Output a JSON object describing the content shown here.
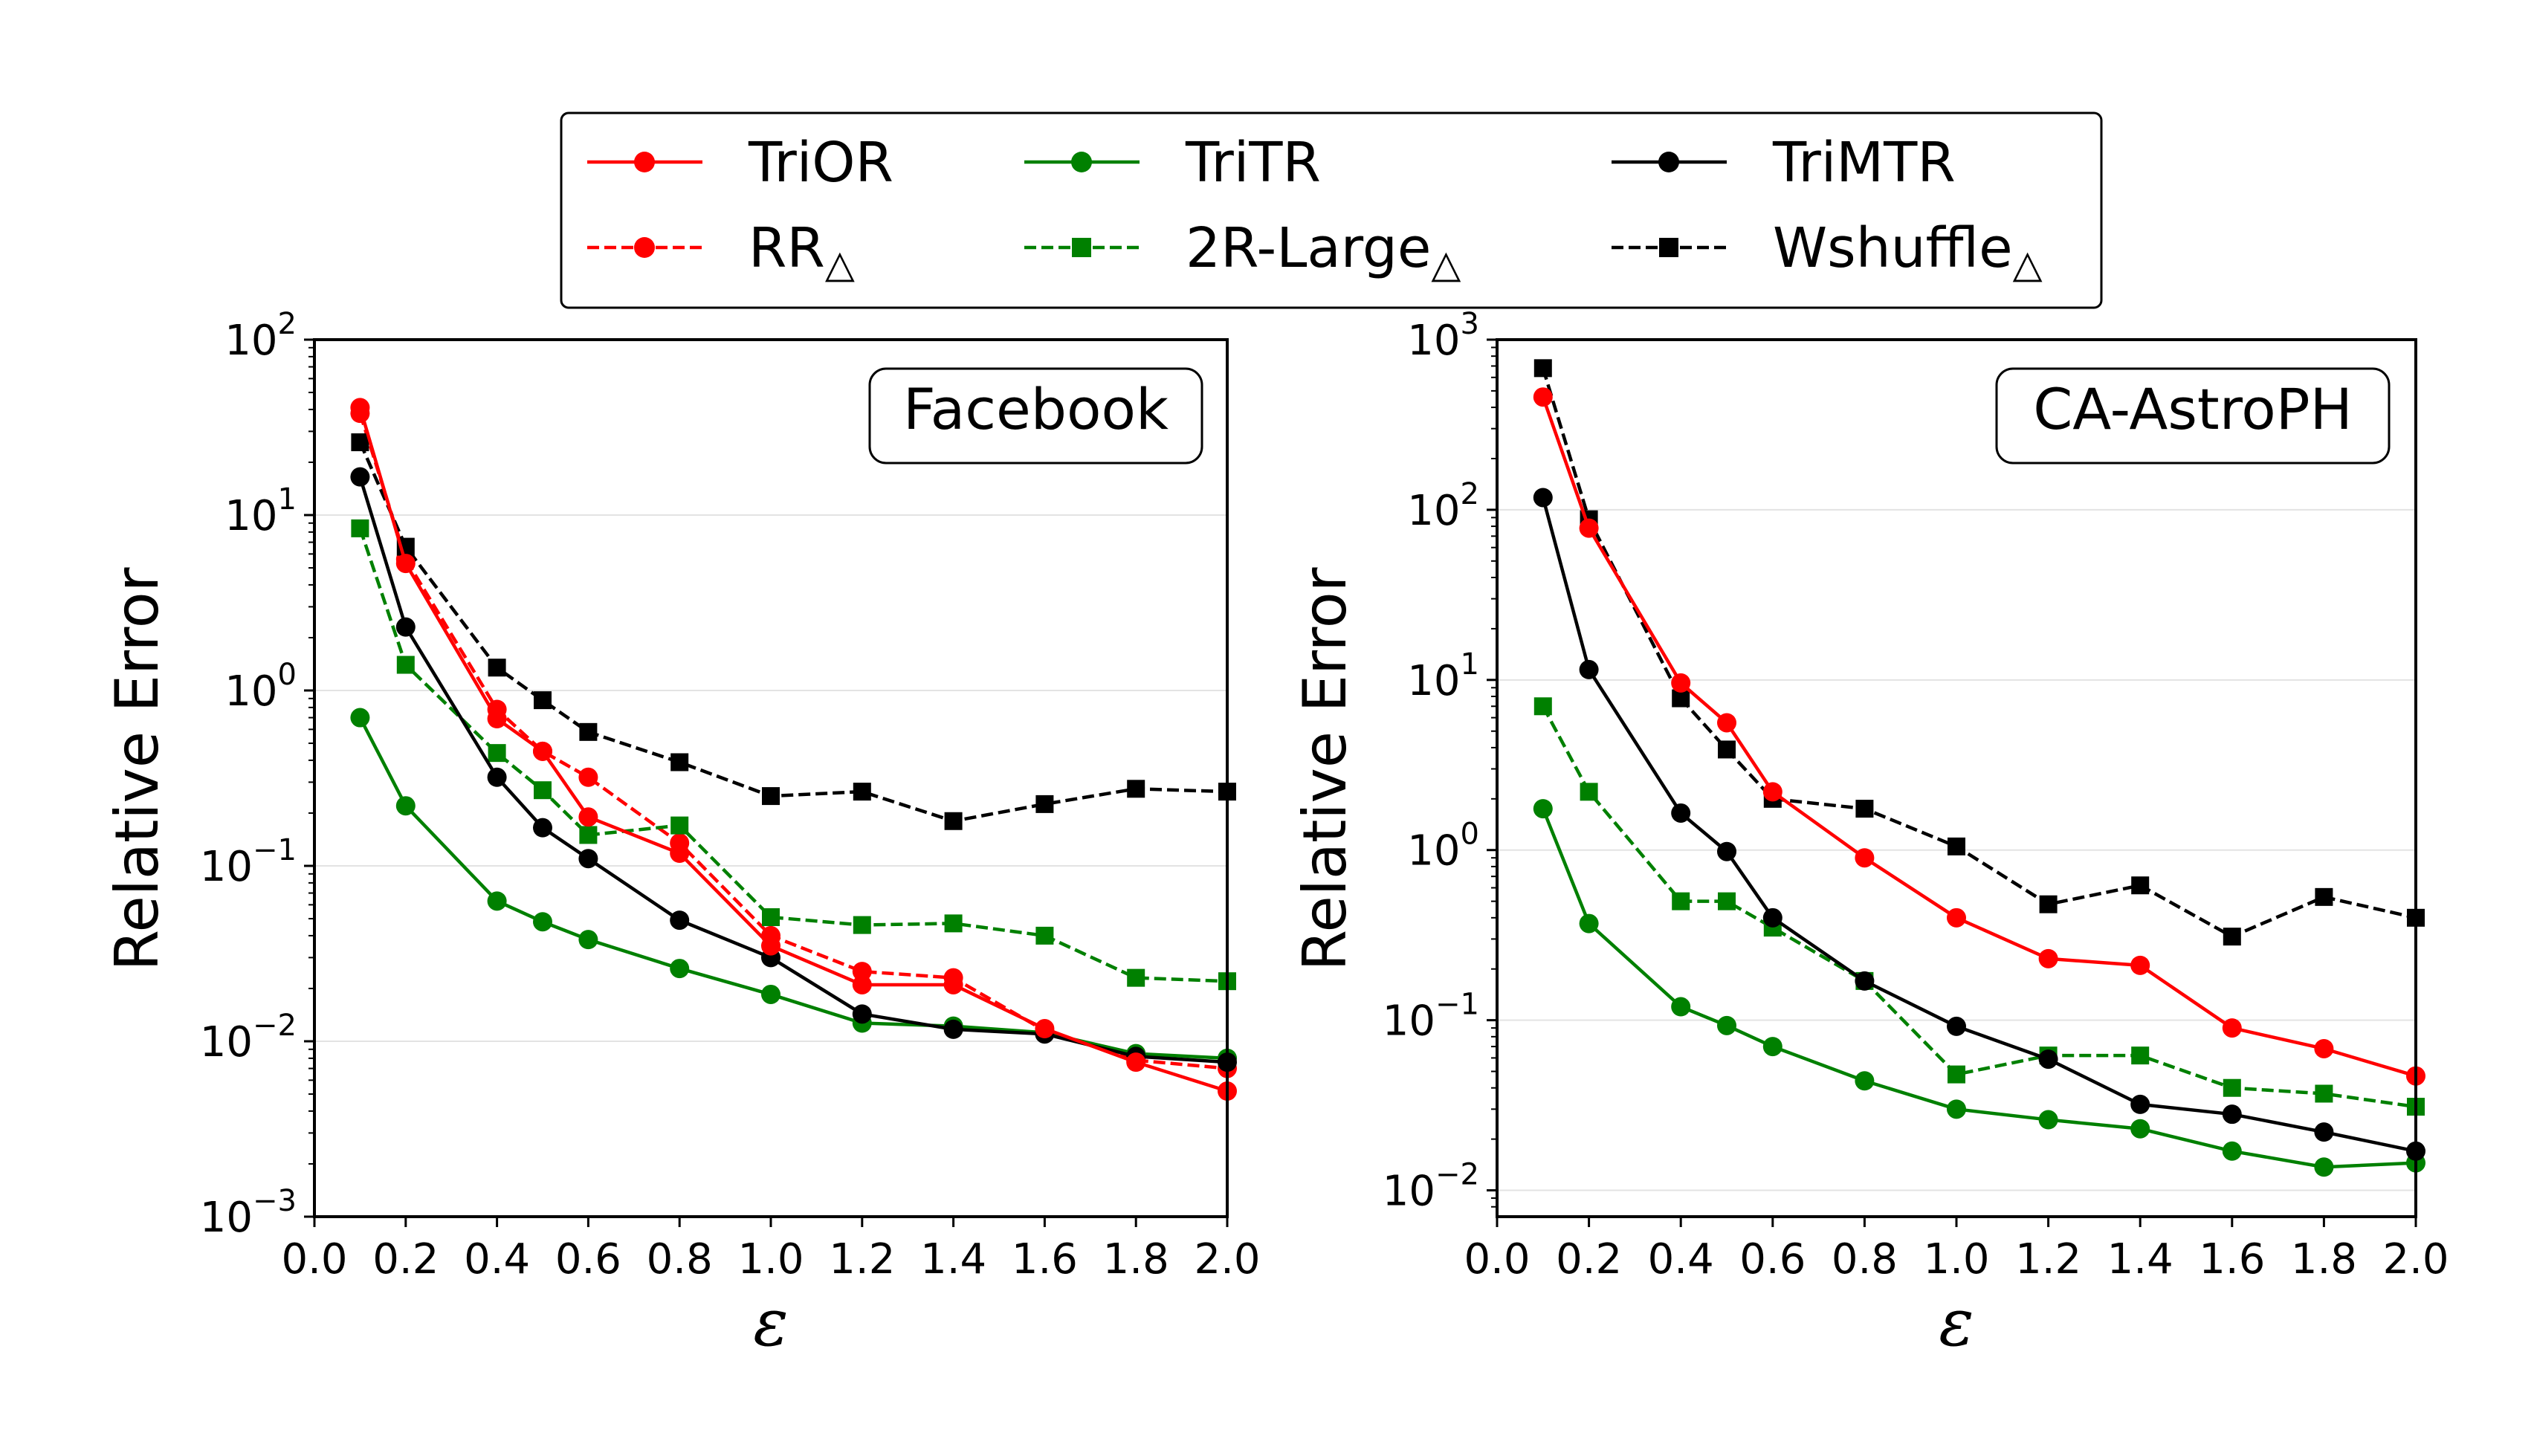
{
  "legend": {
    "entries": [
      {
        "key": "TriOR",
        "label": "TriOR",
        "sub": "",
        "color": "#ff0000",
        "dashed": false,
        "marker": "circle"
      },
      {
        "key": "TriTR",
        "label": "TriTR",
        "sub": "",
        "color": "#008000",
        "dashed": false,
        "marker": "circle"
      },
      {
        "key": "TriMTR",
        "label": "TriMTR",
        "sub": "",
        "color": "#000000",
        "dashed": false,
        "marker": "circle"
      },
      {
        "key": "RR",
        "label": "RR",
        "sub": "△",
        "color": "#ff0000",
        "dashed": true,
        "marker": "circle"
      },
      {
        "key": "2RLarge",
        "label": "2R-Large",
        "sub": "△",
        "color": "#008000",
        "dashed": true,
        "marker": "square"
      },
      {
        "key": "Wshuffle",
        "label": "Wshuffle",
        "sub": "△",
        "color": "#000000",
        "dashed": true,
        "marker": "square"
      }
    ]
  },
  "chart_data": [
    {
      "type": "line",
      "panel_label": "Facebook",
      "xlabel": "ε",
      "ylabel": "Relative Error",
      "xlim": [
        0.0,
        2.0
      ],
      "ylim": [
        0.001,
        100
      ],
      "yscale": "log",
      "grid": "horizontal",
      "x_ticks": [
        "0.0",
        "0.2",
        "0.4",
        "0.6",
        "0.8",
        "1.0",
        "1.2",
        "1.4",
        "1.6",
        "1.8",
        "2.0"
      ],
      "y_ticks": [
        {
          "base": "10",
          "exp": "−3"
        },
        {
          "base": "10",
          "exp": "−2"
        },
        {
          "base": "10",
          "exp": "−1"
        },
        {
          "base": "10",
          "exp": "0"
        },
        {
          "base": "10",
          "exp": "1"
        },
        {
          "base": "10",
          "exp": "2"
        }
      ],
      "x": [
        0.1,
        0.2,
        0.4,
        0.5,
        0.6,
        0.8,
        1.0,
        1.2,
        1.4,
        1.6,
        1.8,
        2.0
      ],
      "series": [
        {
          "key": "RR",
          "values": [
            38,
            5.6,
            0.78,
            0.45,
            0.32,
            0.135,
            0.04,
            0.025,
            0.023,
            0.0115,
            0.0078,
            0.007
          ]
        },
        {
          "key": "2RLarge",
          "values": [
            8.4,
            1.4,
            0.44,
            0.27,
            0.15,
            0.17,
            0.051,
            0.046,
            0.047,
            0.04,
            0.023,
            0.022
          ]
        },
        {
          "key": "Wshuffle",
          "values": [
            26,
            6.6,
            1.35,
            0.88,
            0.58,
            0.39,
            0.25,
            0.265,
            0.18,
            0.225,
            0.275,
            0.265
          ]
        },
        {
          "key": "TriTR",
          "values": [
            0.7,
            0.22,
            0.063,
            0.048,
            0.038,
            0.026,
            0.0185,
            0.0127,
            0.0122,
            0.0112,
            0.0085,
            0.008
          ]
        },
        {
          "key": "TriMTR",
          "values": [
            16.5,
            2.3,
            0.32,
            0.165,
            0.11,
            0.049,
            0.03,
            0.0143,
            0.0117,
            0.011,
            0.0082,
            0.0076
          ]
        },
        {
          "key": "TriOR",
          "values": [
            41,
            5.3,
            0.69,
            0.45,
            0.19,
            0.118,
            0.035,
            0.021,
            0.021,
            0.0118,
            0.0076,
            0.0052
          ]
        }
      ]
    },
    {
      "type": "line",
      "panel_label": "CA-AstroPH",
      "xlabel": "ε",
      "ylabel": "Relative Error",
      "xlim": [
        0.0,
        2.0
      ],
      "ylim": [
        0.007,
        1000
      ],
      "yscale": "log",
      "grid": "horizontal",
      "x_ticks": [
        "0.0",
        "0.2",
        "0.4",
        "0.6",
        "0.8",
        "1.0",
        "1.2",
        "1.4",
        "1.6",
        "1.8",
        "2.0"
      ],
      "y_ticks": [
        {
          "base": "10",
          "exp": "−2"
        },
        {
          "base": "10",
          "exp": "−1"
        },
        {
          "base": "10",
          "exp": "0"
        },
        {
          "base": "10",
          "exp": "1"
        },
        {
          "base": "10",
          "exp": "2"
        },
        {
          "base": "10",
          "exp": "3"
        }
      ],
      "x": [
        0.1,
        0.2,
        0.4,
        0.5,
        0.6,
        0.8,
        1.0,
        1.2,
        1.4,
        1.6,
        1.8,
        2.0
      ],
      "series": [
        {
          "key": "2RLarge",
          "values": [
            7,
            2.2,
            0.5,
            0.5,
            0.35,
            0.17,
            0.048,
            0.062,
            0.062,
            0.04,
            0.037,
            0.031
          ]
        },
        {
          "key": "Wshuffle",
          "values": [
            680,
            88,
            7.8,
            3.9,
            2.0,
            1.75,
            1.05,
            0.48,
            0.62,
            0.31,
            0.53,
            0.4
          ]
        },
        {
          "key": "TriTR",
          "values": [
            1.75,
            0.37,
            0.12,
            0.093,
            0.07,
            0.044,
            0.03,
            0.026,
            0.023,
            0.017,
            0.0137,
            0.0145
          ]
        },
        {
          "key": "TriMTR",
          "values": [
            118,
            11.5,
            1.65,
            0.98,
            0.4,
            0.17,
            0.092,
            0.059,
            0.032,
            0.028,
            0.022,
            0.017
          ]
        },
        {
          "key": "TriOR",
          "values": [
            460,
            78,
            9.6,
            5.6,
            2.2,
            0.9,
            0.4,
            0.23,
            0.21,
            0.09,
            0.068,
            0.047
          ]
        }
      ]
    }
  ]
}
